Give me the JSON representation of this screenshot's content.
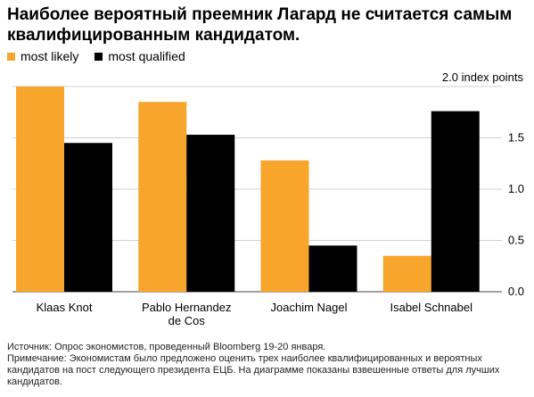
{
  "title": "Наиболее вероятный преемник Лагард не считается самым квалифицированным кандидатом.",
  "legend": [
    {
      "label": "most likely",
      "color": "#F7A52B"
    },
    {
      "label": "most qualified",
      "color": "#000000"
    }
  ],
  "unit_label": "2.0 index points",
  "notes": {
    "source": "Источник: Опрос экономистов, проведенный Bloomberg 19-20 января.",
    "note": "Примечание: Экономистам было предложено оценить трех наиболее квалифицированных и вероятных кандидатов на пост следующего президента ЕЦБ. На диаграмме показаны взвешенные ответы для лучших кандидатов."
  },
  "chart_data": {
    "type": "bar",
    "title": "Наиболее вероятный преемник Лагард не считается самым квалифицированным кандидатом.",
    "categories": [
      "Klaas Knot",
      "Pablo Hernandez de Cos",
      "Joachim Nagel",
      "Isabel Schnabel"
    ],
    "series": [
      {
        "name": "most likely",
        "color": "#F7A52B",
        "values": [
          2.0,
          1.85,
          1.28,
          0.35
        ]
      },
      {
        "name": "most qualified",
        "color": "#000000",
        "values": [
          1.45,
          1.53,
          0.45,
          1.76
        ]
      }
    ],
    "ylim": [
      0,
      2.0
    ],
    "yticks": [
      0.0,
      0.5,
      1.0,
      1.5
    ],
    "ytick_labels": [
      "0.0",
      "0.5",
      "1.0",
      "1.5"
    ],
    "unit": "2.0 index points",
    "grid": true,
    "legend_position": "top-left"
  }
}
